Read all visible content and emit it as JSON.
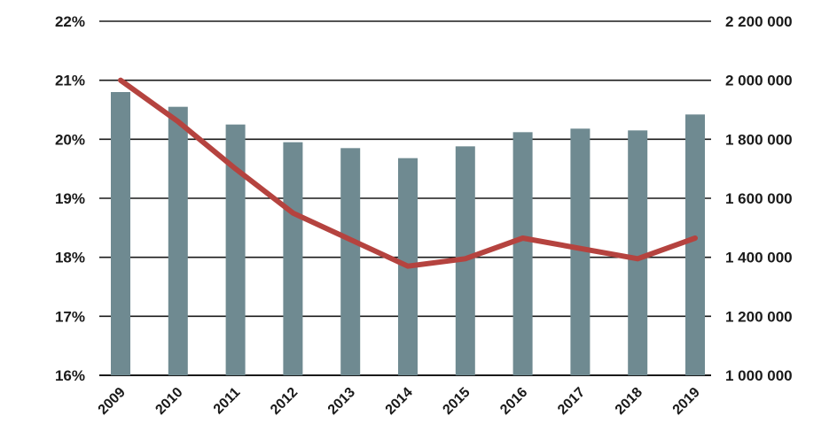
{
  "chart_data": {
    "type": "bar",
    "title": "",
    "xlabel": "",
    "ylabel": "",
    "categories": [
      "2009",
      "2010",
      "2011",
      "2012",
      "2013",
      "2014",
      "2015",
      "2016",
      "2017",
      "2018",
      "2019"
    ],
    "series": [
      {
        "type": "bar",
        "axis": "left",
        "values": [
          20.8,
          20.55,
          20.25,
          19.95,
          19.85,
          19.68,
          19.88,
          20.12,
          20.18,
          20.15,
          20.42
        ]
      },
      {
        "type": "line",
        "axis": "right",
        "values": [
          2000000,
          1860000,
          1700000,
          1550000,
          1460000,
          1370000,
          1395000,
          1465000,
          1430000,
          1395000,
          1465000
        ]
      }
    ],
    "y_left": {
      "ylim": [
        16,
        22
      ],
      "ticks": [
        "16%",
        "17%",
        "18%",
        "19%",
        "20%",
        "21%",
        "22%"
      ],
      "tick_values": [
        16,
        17,
        18,
        19,
        20,
        21,
        22
      ]
    },
    "y_right": {
      "ylim": [
        1000000,
        2200000
      ],
      "ticks": [
        "1 000 000",
        "1 200 000",
        "1 400 000",
        "1 600 000",
        "1 800 000",
        "2 000 000",
        "2 200 000"
      ],
      "tick_values": [
        1000000,
        1200000,
        1400000,
        1600000,
        1800000,
        2000000,
        2200000
      ]
    },
    "grid": true,
    "legend": "none",
    "colors": {
      "bar": "#6f8a91",
      "line": "#b5433f",
      "grid": "#1a1a1a"
    }
  }
}
